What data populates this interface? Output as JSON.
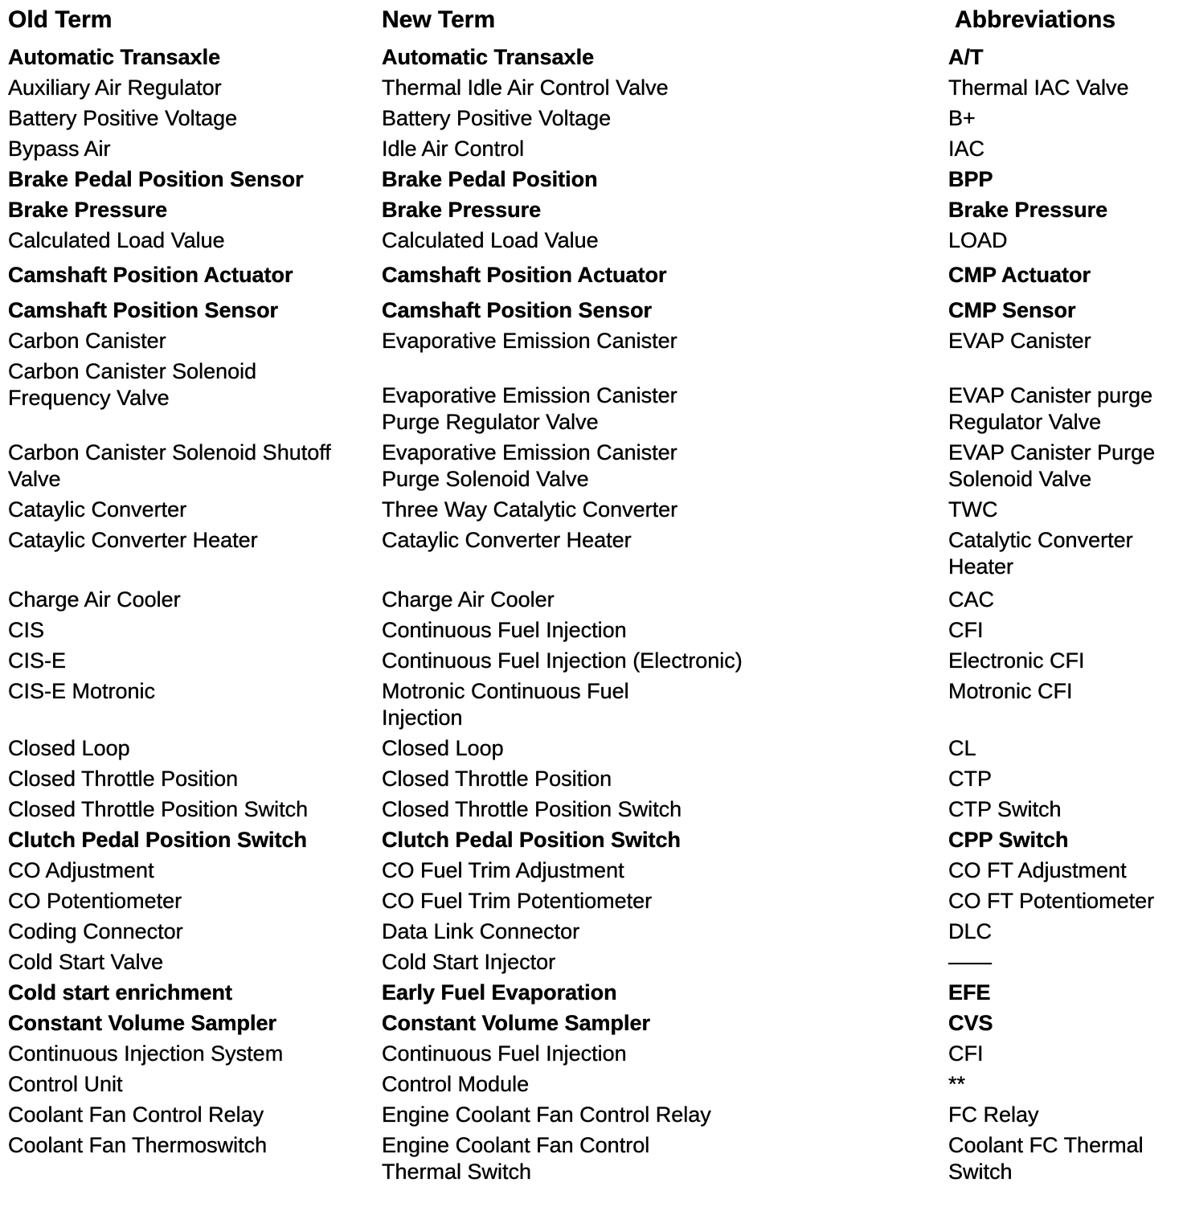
{
  "page": {
    "background_color": "#ffffff",
    "text_color": "#000000",
    "kind": "scanned terminology conversion table"
  },
  "table": {
    "headers": {
      "old": "Old Term",
      "new": "New Term",
      "abbr": "Abbreviations"
    },
    "rows": [
      {
        "old": [
          "Automatic Transaxle"
        ],
        "new": [
          "Automatic Transaxle"
        ],
        "abbr": [
          "A/T"
        ],
        "bold": true
      },
      {
        "old": [
          "Auxiliary Air Regulator"
        ],
        "new": [
          "Thermal Idle Air Control Valve"
        ],
        "abbr": [
          "Thermal IAC Valve"
        ]
      },
      {
        "old": [
          "Battery Positive Voltage"
        ],
        "new": [
          "Battery Positive Voltage"
        ],
        "abbr": [
          "B+"
        ]
      },
      {
        "old": [
          "Bypass Air"
        ],
        "new": [
          "Idle Air Control"
        ],
        "abbr": [
          "IAC"
        ]
      },
      {
        "old": [
          "Brake Pedal Position Sensor"
        ],
        "new": [
          "Brake Pedal Position"
        ],
        "abbr": [
          "BPP"
        ],
        "bold": true
      },
      {
        "old": [
          "Brake Pressure"
        ],
        "new": [
          "Brake Pressure"
        ],
        "abbr": [
          "Brake Pressure"
        ],
        "bold": true
      },
      {
        "old": [
          "Calculated Load Value"
        ],
        "new": [
          "Calculated Load Value"
        ],
        "abbr": [
          "LOAD"
        ]
      },
      {
        "old": [
          "Camshaft Position Actuator"
        ],
        "new": [
          "Camshaft Position Actuator"
        ],
        "abbr": [
          "CMP Actuator"
        ],
        "bold": true,
        "gap_before": 10
      },
      {
        "old": [
          "Camshaft Position Sensor"
        ],
        "new": [
          "Camshaft Position Sensor"
        ],
        "abbr": [
          "CMP Sensor"
        ],
        "bold": true,
        "gap_before": 11
      },
      {
        "old": [
          "Carbon Canister"
        ],
        "new": [
          "Evaporative Emission Canister"
        ],
        "abbr": [
          "EVAP Canister"
        ]
      },
      {
        "old": [
          "Carbon Canister Solenoid",
          "Frequency Valve"
        ],
        "new": [
          "Evaporative Emission Canister",
          "Purge Regulator Valve"
        ],
        "abbr": [
          "EVAP Canister purge",
          "Regulator Valve"
        ],
        "new_pad": 30,
        "abbr_pad": 30
      },
      {
        "old": [
          "Carbon Canister Solenoid Shutoff",
          "Valve"
        ],
        "new": [
          "Evaporative Emission Canister",
          "Purge Solenoid Valve"
        ],
        "abbr": [
          "EVAP Canister Purge",
          "Solenoid Valve"
        ]
      },
      {
        "old": [
          "Cataylic Converter"
        ],
        "new": [
          "Three Way Catalytic Converter"
        ],
        "abbr": [
          "TWC"
        ]
      },
      {
        "old": [
          "Cataylic Converter Heater"
        ],
        "new": [
          "Cataylic Converter Heater"
        ],
        "abbr": [
          "Catalytic Converter",
          "Heater"
        ]
      },
      {
        "old": [
          "Charge Air Cooler"
        ],
        "new": [
          "Charge Air Cooler"
        ],
        "abbr": [
          "CAC"
        ],
        "gap_before": 8
      },
      {
        "old": [
          "CIS"
        ],
        "new": [
          "Continuous Fuel Injection"
        ],
        "abbr": [
          "CFI"
        ]
      },
      {
        "old": [
          "CIS-E"
        ],
        "new": [
          "Continuous Fuel Injection (Electronic)"
        ],
        "abbr": [
          "Electronic CFI"
        ]
      },
      {
        "old": [
          "CIS-E Motronic"
        ],
        "new": [
          "Motronic Continuous Fuel",
          "Injection"
        ],
        "abbr": [
          "Motronic CFI"
        ]
      },
      {
        "old": [
          "Closed Loop"
        ],
        "new": [
          "Closed Loop"
        ],
        "abbr": [
          "CL"
        ]
      },
      {
        "old": [
          "Closed Throttle Position"
        ],
        "new": [
          "Closed Throttle Position"
        ],
        "abbr": [
          "CTP"
        ]
      },
      {
        "old": [
          "Closed Throttle Position Switch"
        ],
        "new": [
          "Closed Throttle Position Switch"
        ],
        "abbr": [
          "CTP Switch"
        ]
      },
      {
        "old": [
          "Clutch Pedal Position Switch"
        ],
        "new": [
          "Clutch Pedal Position Switch"
        ],
        "abbr": [
          "CPP Switch"
        ],
        "bold": true
      },
      {
        "old": [
          "CO Adjustment"
        ],
        "new": [
          "CO Fuel Trim Adjustment"
        ],
        "abbr": [
          "CO FT Adjustment"
        ]
      },
      {
        "old": [
          "CO Potentiometer"
        ],
        "new": [
          "CO Fuel Trim Potentiometer"
        ],
        "abbr": [
          "CO FT Potentiometer"
        ]
      },
      {
        "old": [
          "Coding Connector"
        ],
        "new": [
          "Data Link Connector"
        ],
        "abbr": [
          "DLC"
        ]
      },
      {
        "old": [
          "Cold Start Valve"
        ],
        "new": [
          "Cold Start Injector"
        ],
        "abbr": [
          "——"
        ]
      },
      {
        "old": [
          "Cold start enrichment"
        ],
        "new": [
          "Early Fuel Evaporation"
        ],
        "abbr": [
          "EFE"
        ],
        "bold": true
      },
      {
        "old": [
          "Constant Volume Sampler"
        ],
        "new": [
          "Constant Volume Sampler"
        ],
        "abbr": [
          "CVS"
        ],
        "bold": true
      },
      {
        "old": [
          "Continuous Injection System"
        ],
        "new": [
          "Continuous Fuel Injection"
        ],
        "abbr": [
          "CFI"
        ]
      },
      {
        "old": [
          "Control Unit"
        ],
        "new": [
          "Control Module"
        ],
        "abbr": [
          "**"
        ]
      },
      {
        "old": [
          "Coolant Fan Control Relay"
        ],
        "new": [
          "Engine Coolant Fan Control Relay"
        ],
        "abbr": [
          "FC Relay"
        ]
      },
      {
        "old": [
          "Coolant Fan Thermoswitch"
        ],
        "new": [
          "Engine Coolant Fan Control",
          "Thermal Switch"
        ],
        "abbr": [
          "Coolant FC Thermal",
          "Switch"
        ]
      }
    ]
  }
}
